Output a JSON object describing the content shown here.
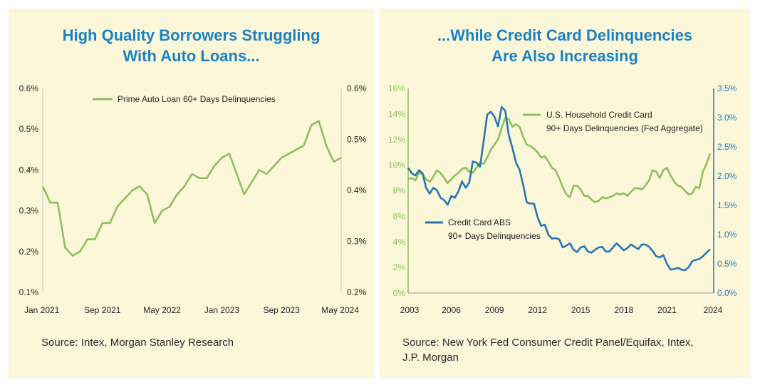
{
  "panels": [
    {
      "title_lines": [
        "High Quality Borrowers Struggling",
        "With Auto Loans..."
      ],
      "source": "Source: Intex, Morgan Stanley Research"
    },
    {
      "title_lines": [
        "...While Credit Card Delinquencies",
        "Are Also Increasing"
      ],
      "source_lines": [
        "Source: New York Fed Consumer Credit Panel/Equifax, Intex,",
        "J.P. Morgan"
      ]
    }
  ],
  "colors": {
    "green": "#8cc05f",
    "blue": "#2776b3",
    "title": "#1a82c4",
    "background": "#fdf7d9",
    "axis_right_blue": "#2776b3",
    "axis_left_green": "#8cc05f"
  },
  "chart_data": [
    {
      "type": "line",
      "title": "High Quality Borrowers Struggling With Auto Loans...",
      "x_tick_labels": [
        "Jan 2021",
        "Sep 2021",
        "May 2022",
        "Jan 2023",
        "Sep 2023",
        "May 2024"
      ],
      "x_range": [
        "Jan 2021",
        "May 2024"
      ],
      "y_left_ticks": [
        "0.1%",
        "0.2%",
        "0.3%",
        "0.4%",
        "0.5%",
        "0.6%"
      ],
      "y_right_ticks": [
        "0.2%",
        "0.3%",
        "0.4%",
        "0.5%",
        "0.6%"
      ],
      "ylim_left": [
        0.1,
        0.6
      ],
      "ylim_right": [
        0.2,
        0.6
      ],
      "legend": "top-center",
      "series": [
        {
          "name": "Prime Auto Loan 60+ Days Delinquencies",
          "axis": "left",
          "x": [
            "2021-01",
            "2021-02",
            "2021-03",
            "2021-04",
            "2021-05",
            "2021-06",
            "2021-07",
            "2021-08",
            "2021-09",
            "2021-10",
            "2021-11",
            "2021-12",
            "2022-01",
            "2022-02",
            "2022-03",
            "2022-04",
            "2022-05",
            "2022-06",
            "2022-07",
            "2022-08",
            "2022-09",
            "2022-10",
            "2022-11",
            "2022-12",
            "2023-01",
            "2023-02",
            "2023-03",
            "2023-04",
            "2023-05",
            "2023-06",
            "2023-07",
            "2023-08",
            "2023-09",
            "2023-10",
            "2023-11",
            "2023-12",
            "2024-01",
            "2024-02",
            "2024-03",
            "2024-04",
            "2024-05"
          ],
          "values": [
            0.36,
            0.32,
            0.32,
            0.21,
            0.19,
            0.2,
            0.23,
            0.23,
            0.27,
            0.27,
            0.31,
            0.33,
            0.35,
            0.36,
            0.34,
            0.27,
            0.3,
            0.31,
            0.34,
            0.36,
            0.39,
            0.38,
            0.38,
            0.41,
            0.43,
            0.44,
            0.39,
            0.34,
            0.37,
            0.4,
            0.39,
            0.41,
            0.43,
            0.44,
            0.45,
            0.46,
            0.51,
            0.52,
            0.46,
            0.42,
            0.43
          ]
        }
      ]
    },
    {
      "type": "line",
      "title": "...While Credit Card Delinquencies Are Also Increasing",
      "x_tick_labels": [
        "2003",
        "2006",
        "2009",
        "2012",
        "2015",
        "2018",
        "2021",
        "2024"
      ],
      "x_range": [
        2003,
        2024.25
      ],
      "y_left_ticks": [
        "0%",
        "2%",
        "4%",
        "6%",
        "8%",
        "10%",
        "12%",
        "14%",
        "16%"
      ],
      "y_right_ticks": [
        "0.0%",
        "0.5%",
        "1.0%",
        "1.5%",
        "2.0%",
        "2.5%",
        "3.0%",
        "3.5%"
      ],
      "ylim_left": [
        0,
        16
      ],
      "ylim_right": [
        0,
        3.5
      ],
      "series": [
        {
          "name": "U.S. Household Credit Card 90+ Days Delinquencies (Fed Aggregate)",
          "label_lines": [
            "U.S. Household Credit Card",
            "90+ Days Delinquencies (Fed Aggregate)"
          ],
          "axis": "left",
          "x": [
            2003.0,
            2003.25,
            2003.5,
            2003.75,
            2004.0,
            2004.25,
            2004.5,
            2004.75,
            2005.0,
            2005.25,
            2005.5,
            2005.75,
            2006.0,
            2006.25,
            2006.5,
            2006.75,
            2007.0,
            2007.25,
            2007.5,
            2007.75,
            2008.0,
            2008.25,
            2008.5,
            2008.75,
            2009.0,
            2009.25,
            2009.5,
            2009.75,
            2010.0,
            2010.25,
            2010.5,
            2010.75,
            2011.0,
            2011.25,
            2011.5,
            2011.75,
            2012.0,
            2012.25,
            2012.5,
            2012.75,
            2013.0,
            2013.25,
            2013.5,
            2013.75,
            2014.0,
            2014.25,
            2014.5,
            2014.75,
            2015.0,
            2015.25,
            2015.5,
            2015.75,
            2016.0,
            2016.25,
            2016.5,
            2016.75,
            2017.0,
            2017.25,
            2017.5,
            2017.75,
            2018.0,
            2018.25,
            2018.5,
            2018.75,
            2019.0,
            2019.25,
            2019.5,
            2019.75,
            2020.0,
            2020.25,
            2020.5,
            2020.75,
            2021.0,
            2021.25,
            2021.5,
            2021.75,
            2022.0,
            2022.25,
            2022.5,
            2022.75,
            2023.0,
            2023.25,
            2023.5,
            2023.75,
            2024.0
          ],
          "values": [
            8.9,
            9.0,
            8.8,
            9.4,
            9.3,
            8.9,
            8.7,
            9.1,
            9.6,
            9.4,
            9.0,
            8.6,
            8.9,
            9.2,
            9.4,
            9.7,
            9.8,
            9.5,
            9.4,
            9.8,
            10.2,
            10.1,
            10.6,
            11.2,
            11.6,
            12.0,
            12.9,
            13.7,
            13.6,
            13.0,
            13.2,
            13.0,
            12.2,
            11.6,
            11.5,
            11.3,
            11.0,
            10.6,
            10.7,
            10.3,
            9.8,
            9.6,
            9.0,
            8.3,
            7.7,
            7.5,
            8.4,
            8.4,
            8.1,
            7.6,
            7.6,
            7.3,
            7.1,
            7.2,
            7.5,
            7.4,
            7.5,
            7.6,
            7.8,
            7.7,
            7.8,
            7.6,
            7.9,
            8.2,
            8.2,
            8.1,
            8.4,
            8.8,
            9.6,
            9.5,
            9.0,
            9.6,
            9.8,
            9.2,
            8.7,
            8.4,
            8.3,
            8.0,
            7.7,
            7.8,
            8.3,
            8.2,
            9.5,
            10.1,
            10.9
          ]
        },
        {
          "name": "Credit Card ABS 90+ Days Delinquencies",
          "label_lines": [
            "Credit Card ABS",
            "90+ Days Delinquencies"
          ],
          "axis": "right",
          "x": [
            2003.0,
            2003.25,
            2003.5,
            2003.75,
            2004.0,
            2004.25,
            2004.5,
            2004.75,
            2005.0,
            2005.25,
            2005.5,
            2005.75,
            2006.0,
            2006.25,
            2006.5,
            2006.75,
            2007.0,
            2007.25,
            2007.5,
            2007.75,
            2008.0,
            2008.25,
            2008.5,
            2008.75,
            2009.0,
            2009.25,
            2009.5,
            2009.75,
            2010.0,
            2010.25,
            2010.5,
            2010.75,
            2011.0,
            2011.25,
            2011.5,
            2011.75,
            2012.0,
            2012.25,
            2012.5,
            2012.75,
            2013.0,
            2013.25,
            2013.5,
            2013.75,
            2014.0,
            2014.25,
            2014.5,
            2014.75,
            2015.0,
            2015.25,
            2015.5,
            2015.75,
            2016.0,
            2016.25,
            2016.5,
            2016.75,
            2017.0,
            2017.25,
            2017.5,
            2017.75,
            2018.0,
            2018.25,
            2018.5,
            2018.75,
            2019.0,
            2019.25,
            2019.5,
            2019.75,
            2020.0,
            2020.25,
            2020.5,
            2020.75,
            2021.0,
            2021.25,
            2021.5,
            2021.75,
            2022.0,
            2022.25,
            2022.5,
            2022.75,
            2023.0,
            2023.25,
            2023.5,
            2023.75,
            2024.0
          ],
          "values": [
            2.14,
            2.05,
            2.01,
            2.1,
            2.05,
            1.8,
            1.7,
            1.8,
            1.76,
            1.63,
            1.59,
            1.51,
            1.66,
            1.63,
            1.74,
            1.91,
            1.8,
            1.89,
            2.25,
            2.23,
            2.16,
            2.6,
            3.05,
            3.1,
            3.02,
            2.85,
            3.18,
            3.12,
            2.7,
            2.48,
            2.23,
            2.11,
            1.85,
            1.55,
            1.53,
            1.53,
            1.3,
            1.15,
            1.17,
            1.0,
            0.93,
            0.94,
            0.92,
            0.78,
            0.81,
            0.85,
            0.74,
            0.7,
            0.78,
            0.8,
            0.71,
            0.69,
            0.74,
            0.78,
            0.79,
            0.71,
            0.71,
            0.78,
            0.85,
            0.79,
            0.73,
            0.77,
            0.83,
            0.79,
            0.75,
            0.83,
            0.83,
            0.79,
            0.72,
            0.63,
            0.61,
            0.65,
            0.5,
            0.4,
            0.41,
            0.43,
            0.4,
            0.39,
            0.44,
            0.54,
            0.57,
            0.58,
            0.63,
            0.69,
            0.75
          ]
        }
      ]
    }
  ]
}
